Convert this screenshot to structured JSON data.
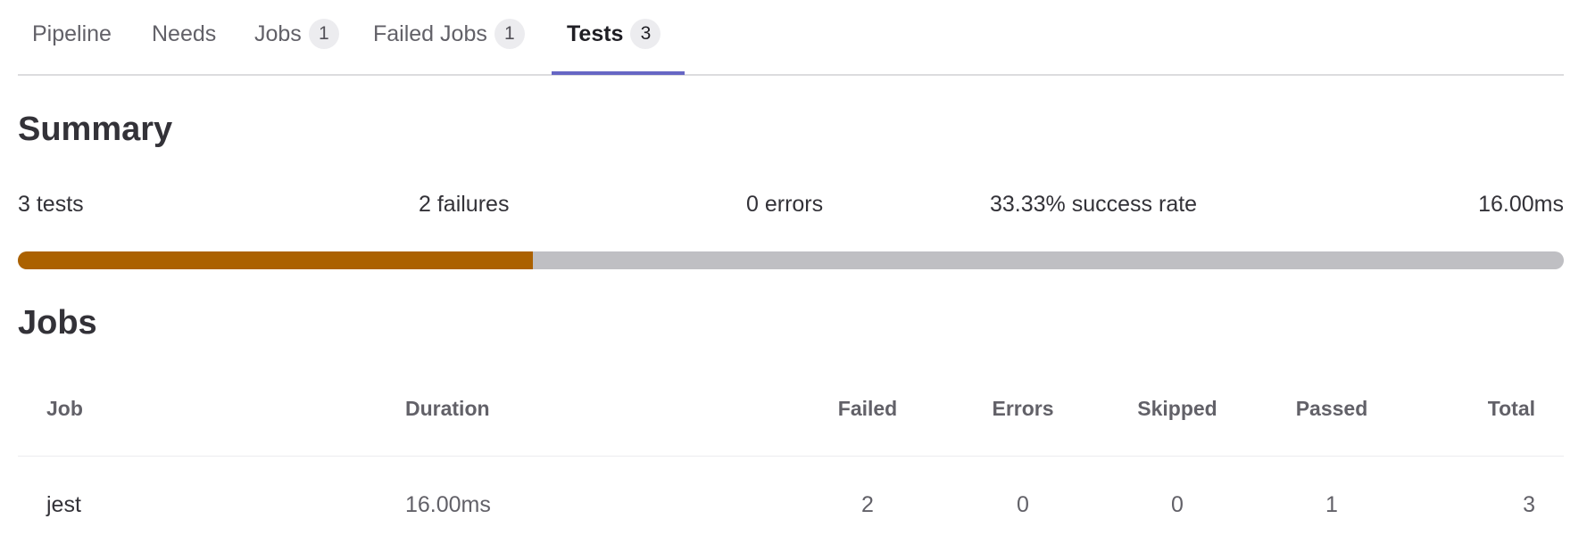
{
  "tabs": [
    {
      "label": "Pipeline"
    },
    {
      "label": "Needs"
    },
    {
      "label": "Jobs",
      "count": "1"
    },
    {
      "label": "Failed Jobs",
      "count": "1"
    },
    {
      "label": "Tests",
      "count": "3",
      "active": true
    }
  ],
  "summary": {
    "title": "Summary",
    "tests": "3 tests",
    "failures": "2 failures",
    "errors": "0 errors",
    "success_rate": "33.33% success rate",
    "duration": "16.00ms",
    "success_fraction": 0.3333,
    "colors": {
      "success": "#ab6100",
      "track": "#bfbfc3"
    }
  },
  "jobs": {
    "title": "Jobs",
    "columns": [
      "Job",
      "Duration",
      "Failed",
      "Errors",
      "Skipped",
      "Passed",
      "Total"
    ],
    "rows": [
      {
        "job": "jest",
        "duration": "16.00ms",
        "failed": "2",
        "errors": "0",
        "skipped": "0",
        "passed": "1",
        "total": "3"
      }
    ]
  },
  "accent": "#6666c4"
}
